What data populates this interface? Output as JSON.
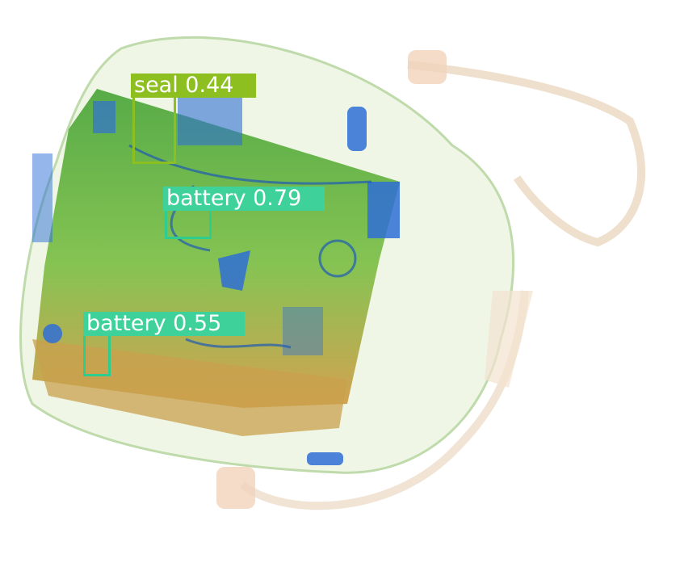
{
  "image": {
    "description_free": true,
    "colors": {
      "bag_outline": "#b9d7a3",
      "strap": "#f1d3bb",
      "laptop_green": "#6fb63c",
      "laptop_orange": "#c9a04d",
      "metal_blue": "#2f6fd6"
    }
  },
  "detections": [
    {
      "label": "seal",
      "score": "0.44",
      "text": "seal  0.44",
      "color": "#8cbf1f"
    },
    {
      "label": "battery",
      "score": "0.79",
      "text": "battery  0.79",
      "color": "#3ed19a"
    },
    {
      "label": "battery",
      "score": "0.55",
      "text": "battery  0.55",
      "color": "#3ed19a"
    }
  ]
}
